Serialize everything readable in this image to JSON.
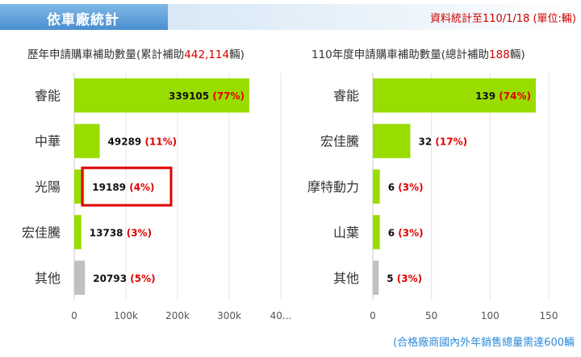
{
  "header": {
    "tab_title": "依車廠統計",
    "note": "資料統計至110/1/18 (單位:輛)"
  },
  "footer_note": "(合格廠商國內外年銷售總量需達600輛",
  "chart_data": [
    {
      "type": "bar",
      "orientation": "horizontal",
      "title_prefix": "歷年申請購車補助數量(累計補助",
      "title_value": "442,114",
      "title_suffix": "輛)",
      "categories": [
        "睿能",
        "中華",
        "光陽",
        "宏佳騰",
        "其他"
      ],
      "values": [
        339105,
        49289,
        19189,
        13738,
        20793
      ],
      "percents": [
        "77%",
        "11%",
        "4%",
        "3%",
        "5%"
      ],
      "colors": [
        "#99dd00",
        "#99dd00",
        "#99dd00",
        "#99dd00",
        "#c0c0c0"
      ],
      "xlim": [
        0,
        400000
      ],
      "ticks": [
        "0",
        "100k",
        "200k",
        "300k",
        "40..."
      ],
      "tick_values": [
        0,
        100000,
        200000,
        300000,
        400000
      ],
      "highlight_index": 2,
      "highlight_color": "#e00000"
    },
    {
      "type": "bar",
      "orientation": "horizontal",
      "title_prefix": "110年度申請購車補助數量(總計補助",
      "title_value": "188",
      "title_suffix": "輛)",
      "categories": [
        "睿能",
        "宏佳騰",
        "摩特動力",
        "山葉",
        "其他"
      ],
      "values": [
        139,
        32,
        6,
        6,
        5
      ],
      "percents": [
        "74%",
        "17%",
        "3%",
        "3%",
        "3%"
      ],
      "colors": [
        "#99dd00",
        "#99dd00",
        "#99dd00",
        "#99dd00",
        "#c0c0c0"
      ],
      "xlim": [
        0,
        150
      ],
      "ticks": [
        "0",
        "50",
        "100",
        "150"
      ],
      "tick_values": [
        0,
        50,
        100,
        150
      ]
    }
  ]
}
